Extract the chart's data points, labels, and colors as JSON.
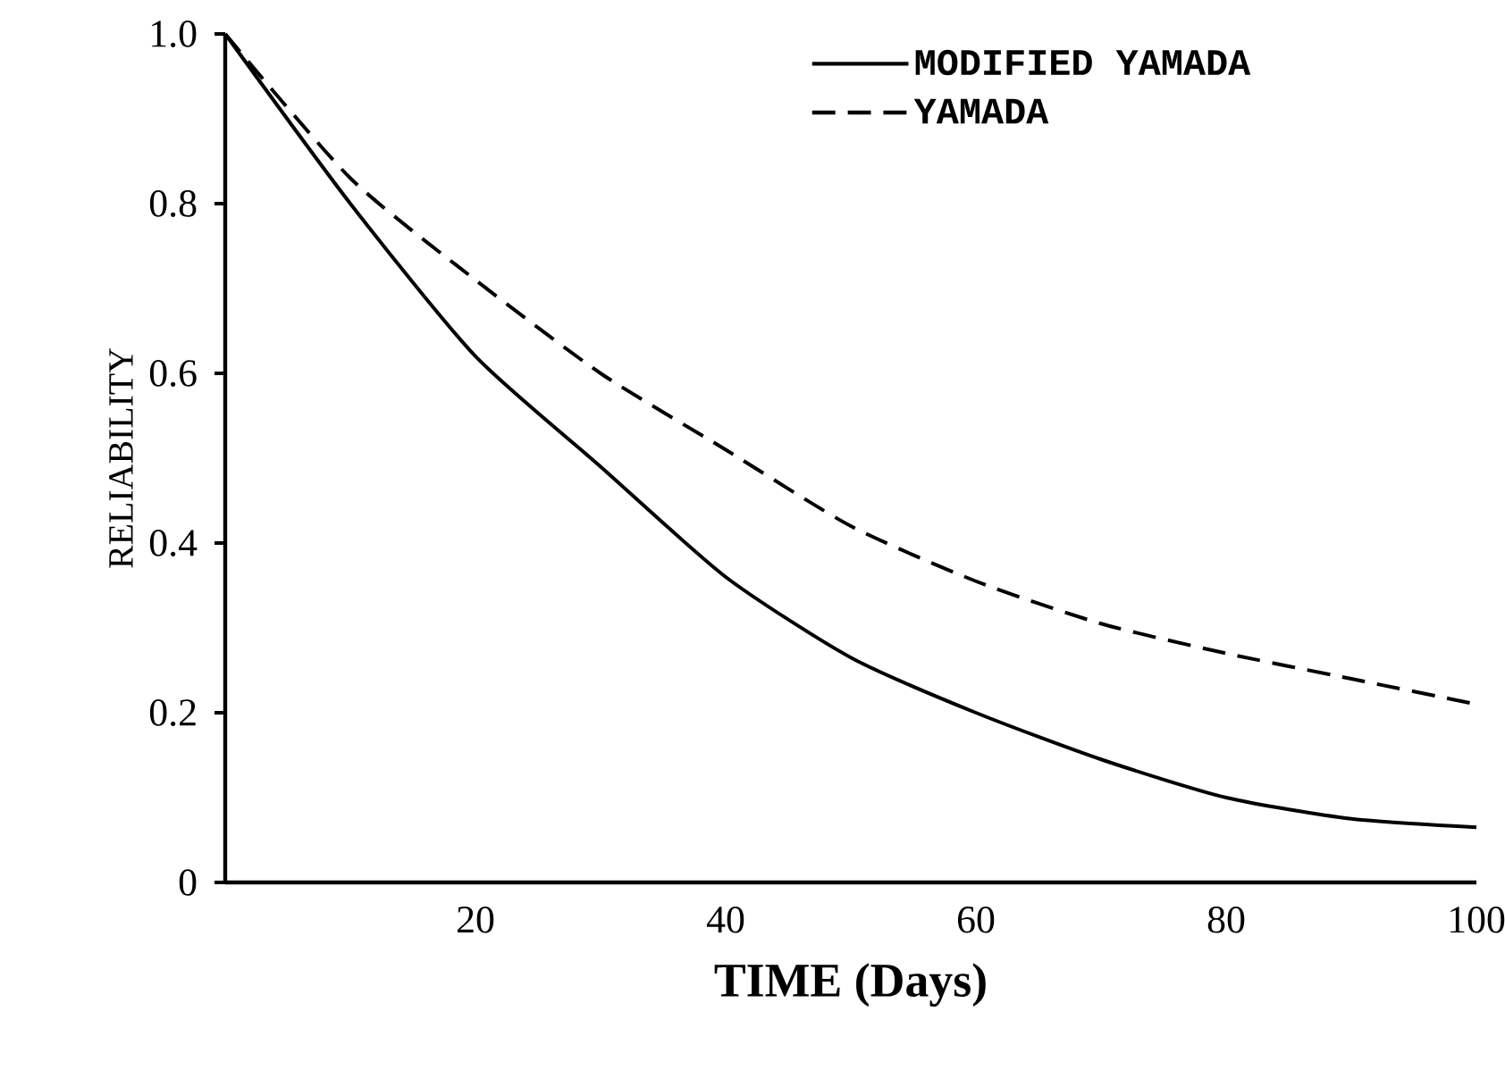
{
  "chart_data": {
    "type": "line",
    "xlabel": "TIME (Days)",
    "ylabel": "RELIABILITY",
    "x": [
      0,
      10,
      20,
      30,
      40,
      50,
      60,
      70,
      80,
      90,
      100
    ],
    "series": [
      {
        "name": "MODIFIED YAMADA",
        "color": "#000000",
        "line_style": "solid",
        "values": [
          1.0,
          0.8,
          0.62,
          0.49,
          0.36,
          0.265,
          0.2,
          0.145,
          0.1,
          0.075,
          0.065
        ]
      },
      {
        "name": "YAMADA",
        "color": "#000000",
        "line_style": "dashed",
        "values": [
          1.0,
          0.83,
          0.71,
          0.6,
          0.51,
          0.42,
          0.355,
          0.305,
          0.27,
          0.24,
          0.21
        ]
      }
    ],
    "xlim": [
      0,
      100
    ],
    "ylim": [
      0,
      1
    ],
    "xticks": [
      20,
      40,
      60,
      80,
      100
    ],
    "yticks": [
      0,
      0.2,
      0.4,
      0.6,
      0.8,
      {
        "value": 1,
        "label": "1.0"
      }
    ],
    "legend": "top right",
    "grid": false,
    "marker": "none"
  }
}
